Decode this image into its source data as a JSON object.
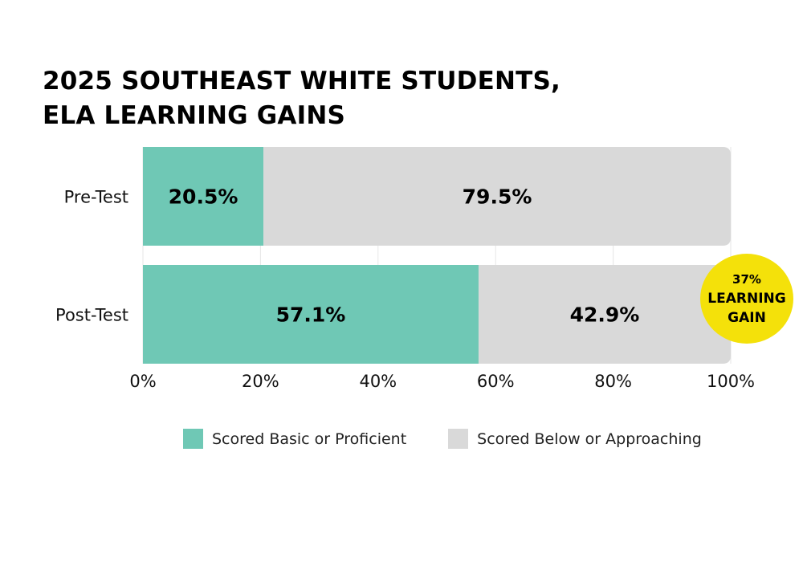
{
  "chart_data": {
    "type": "bar",
    "orientation": "horizontal",
    "stacked": true,
    "title_lines": [
      "2025 SOUTHEAST WHITE STUDENTS,",
      "ELA LEARNING GAINS"
    ],
    "categories": [
      "Pre-Test",
      "Post-Test"
    ],
    "series": [
      {
        "name": "Scored Basic or Proficient",
        "values": [
          20.5,
          57.1
        ],
        "labels": [
          "20.5%",
          "57.1%"
        ],
        "color": "#6fc8b5"
      },
      {
        "name": "Scored Below or Approaching",
        "values": [
          79.5,
          42.9
        ],
        "labels": [
          "79.5%",
          "42.9%"
        ],
        "color": "#d9d9d9"
      }
    ],
    "xlim": [
      0,
      100
    ],
    "x_ticks": [
      0,
      20,
      40,
      60,
      80,
      100
    ],
    "x_tick_labels": [
      "0%",
      "20%",
      "40%",
      "60%",
      "80%",
      "100%"
    ],
    "grid": "vertical",
    "legend_position": "bottom",
    "annotation": {
      "lines": [
        "37%",
        "LEARNING",
        "GAIN"
      ],
      "color": "#f4e10a"
    }
  }
}
